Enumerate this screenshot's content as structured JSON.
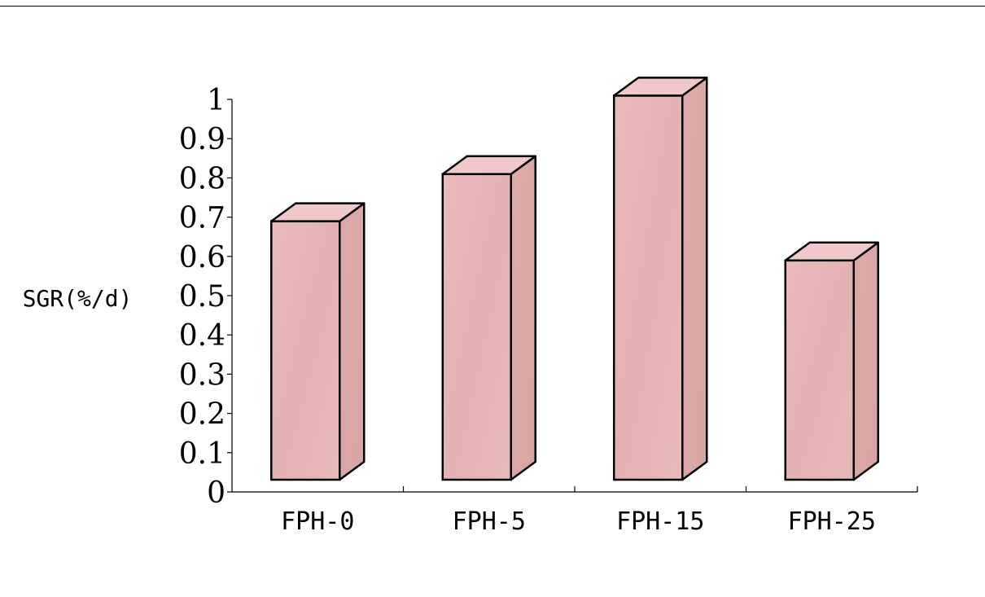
{
  "chart_data": {
    "type": "bar",
    "style": "3d",
    "title": "",
    "xlabel": "",
    "ylabel": "SGR(%/d)",
    "ylim": [
      0,
      1
    ],
    "yticks": [
      "0",
      "0.1",
      "0.2",
      "0.3",
      "0.4",
      "0.5",
      "0.6",
      "0.7",
      "0.8",
      "0.9",
      "1"
    ],
    "categories": [
      "FPH-0",
      "FPH-5",
      "FPH-15",
      "FPH-25"
    ],
    "values": [
      0.7,
      0.82,
      1.02,
      0.6
    ],
    "grid": false,
    "legend": "none",
    "colors": {
      "bar_front": "#e8b8b8",
      "bar_side": "#d9a5a5",
      "bar_top": "#efc9c9",
      "outline": "#000000"
    }
  }
}
